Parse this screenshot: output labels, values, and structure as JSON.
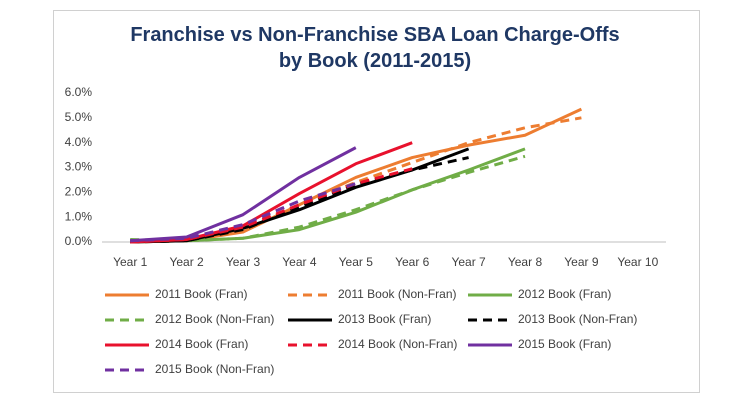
{
  "chart_data": {
    "type": "line",
    "title": "Franchise vs Non-Franchise SBA Loan Charge-Offs by Book (2011-2015)",
    "categories": [
      "Year 1",
      "Year 2",
      "Year 3",
      "Year 4",
      "Year 5",
      "Year 6",
      "Year 7",
      "Year 8",
      "Year 9",
      "Year 10"
    ],
    "ylim": [
      0,
      6
    ],
    "yticks": [
      {
        "value": 0,
        "label": "0.0%"
      },
      {
        "value": 1,
        "label": "1.0%"
      },
      {
        "value": 2,
        "label": "2.0%"
      },
      {
        "value": 3,
        "label": "3.0%"
      },
      {
        "value": 4,
        "label": "4.0%"
      },
      {
        "value": 5,
        "label": "5.0%"
      },
      {
        "value": 6,
        "label": "6.0%"
      }
    ],
    "grid": false,
    "legend": "bottom",
    "series": [
      {
        "name": "2011 Book (Fran)",
        "color": "#ED7D31",
        "line_style": "solid",
        "values": [
          0.0,
          0.05,
          0.4,
          1.5,
          2.6,
          3.4,
          3.9,
          4.3,
          5.35,
          null
        ]
      },
      {
        "name": "2011 Book (Non-Fran)",
        "color": "#ED7D31",
        "line_style": "dashed",
        "values": [
          0.0,
          0.05,
          0.5,
          1.5,
          2.4,
          3.2,
          4.0,
          4.6,
          5.0,
          null
        ]
      },
      {
        "name": "2012 Book (Fran)",
        "color": "#70AD47",
        "line_style": "solid",
        "values": [
          0.05,
          0.05,
          0.15,
          0.5,
          1.2,
          2.1,
          2.9,
          3.75,
          null,
          null
        ]
      },
      {
        "name": "2012 Book (Non-Fran)",
        "color": "#70AD47",
        "line_style": "dashed",
        "values": [
          0.1,
          0.05,
          0.15,
          0.6,
          1.3,
          2.1,
          2.8,
          3.45,
          null,
          null
        ]
      },
      {
        "name": "2013 Book (Fran)",
        "color": "#000000",
        "line_style": "solid",
        "values": [
          0.0,
          0.05,
          0.55,
          1.3,
          2.2,
          2.9,
          3.75,
          null,
          null,
          null
        ]
      },
      {
        "name": "2013 Book (Non-Fran)",
        "color": "#000000",
        "line_style": "dashed",
        "values": [
          0.0,
          0.05,
          0.5,
          1.4,
          2.3,
          2.9,
          3.4,
          null,
          null,
          null
        ]
      },
      {
        "name": "2014 Book (Fran)",
        "color": "#E8112D",
        "line_style": "solid",
        "values": [
          0.0,
          0.1,
          0.65,
          1.95,
          3.15,
          4.0,
          null,
          null,
          null,
          null
        ]
      },
      {
        "name": "2014 Book (Non-Fran)",
        "color": "#E8112D",
        "line_style": "dashed",
        "values": [
          0.0,
          0.1,
          0.6,
          1.5,
          2.35,
          2.95,
          null,
          null,
          null,
          null
        ]
      },
      {
        "name": "2015 Book (Fran)",
        "color": "#7030A0",
        "line_style": "solid",
        "values": [
          0.05,
          0.2,
          1.1,
          2.6,
          3.8,
          null,
          null,
          null,
          null,
          null
        ]
      },
      {
        "name": "2015 Book (Non-Fran)",
        "color": "#7030A0",
        "line_style": "dashed",
        "values": [
          0.05,
          0.15,
          0.7,
          1.65,
          2.35,
          null,
          null,
          null,
          null,
          null
        ]
      }
    ]
  }
}
